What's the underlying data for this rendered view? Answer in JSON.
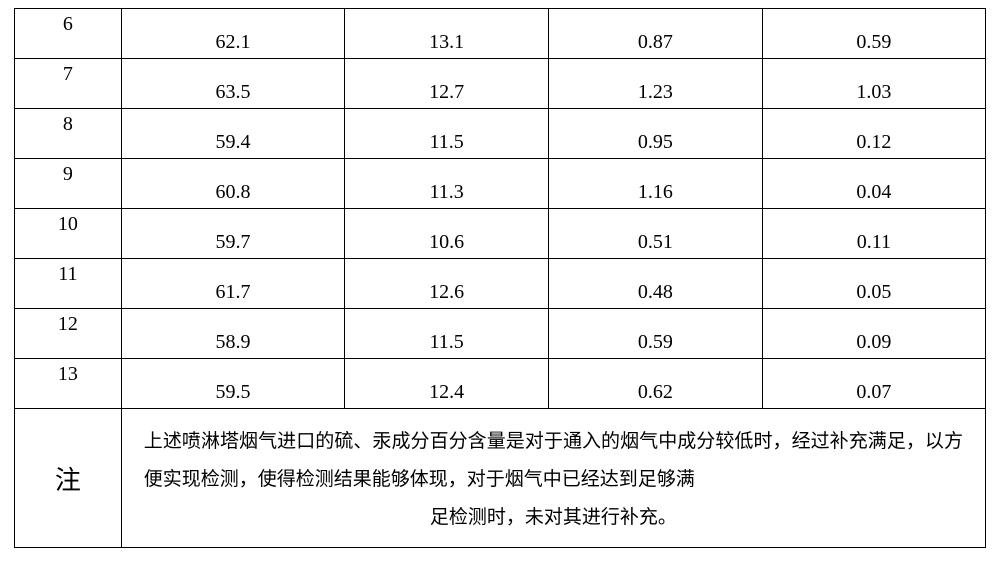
{
  "table": {
    "type": "table",
    "border_color": "#000000",
    "background_color": "#ffffff",
    "text_color": "#000000",
    "cell_fontsize": 20,
    "note_label_fontsize": 26,
    "note_fontsize": 19,
    "columns": [
      "idx",
      "a",
      "b",
      "c",
      "d"
    ],
    "column_widths_pct": [
      11,
      23,
      21,
      22,
      23
    ],
    "rows": [
      {
        "idx": "6",
        "a": "62.1",
        "b": "13.1",
        "c": "0.87",
        "d": "0.59"
      },
      {
        "idx": "7",
        "a": "63.5",
        "b": "12.7",
        "c": "1.23",
        "d": "1.03"
      },
      {
        "idx": "8",
        "a": "59.4",
        "b": "11.5",
        "c": "0.95",
        "d": "0.12"
      },
      {
        "idx": "9",
        "a": "60.8",
        "b": "11.3",
        "c": "1.16",
        "d": "0.04"
      },
      {
        "idx": "10",
        "a": "59.7",
        "b": "10.6",
        "c": "0.51",
        "d": "0.11"
      },
      {
        "idx": "11",
        "a": "61.7",
        "b": "12.6",
        "c": "0.48",
        "d": "0.05"
      },
      {
        "idx": "12",
        "a": "58.9",
        "b": "11.5",
        "c": "0.59",
        "d": "0.09"
      },
      {
        "idx": "13",
        "a": "59.5",
        "b": "12.4",
        "c": "0.62",
        "d": "0.07"
      }
    ],
    "note_label": "注",
    "note_line1": "上述喷淋塔烟气进口的硫、汞成分百分含量是对于通入的烟气中成分较低时，经过补充满足，以方便实现检测，使得检测结果能够体现，对于烟气中已经达到足够满",
    "note_line2": "足检测时，未对其进行补充。"
  }
}
